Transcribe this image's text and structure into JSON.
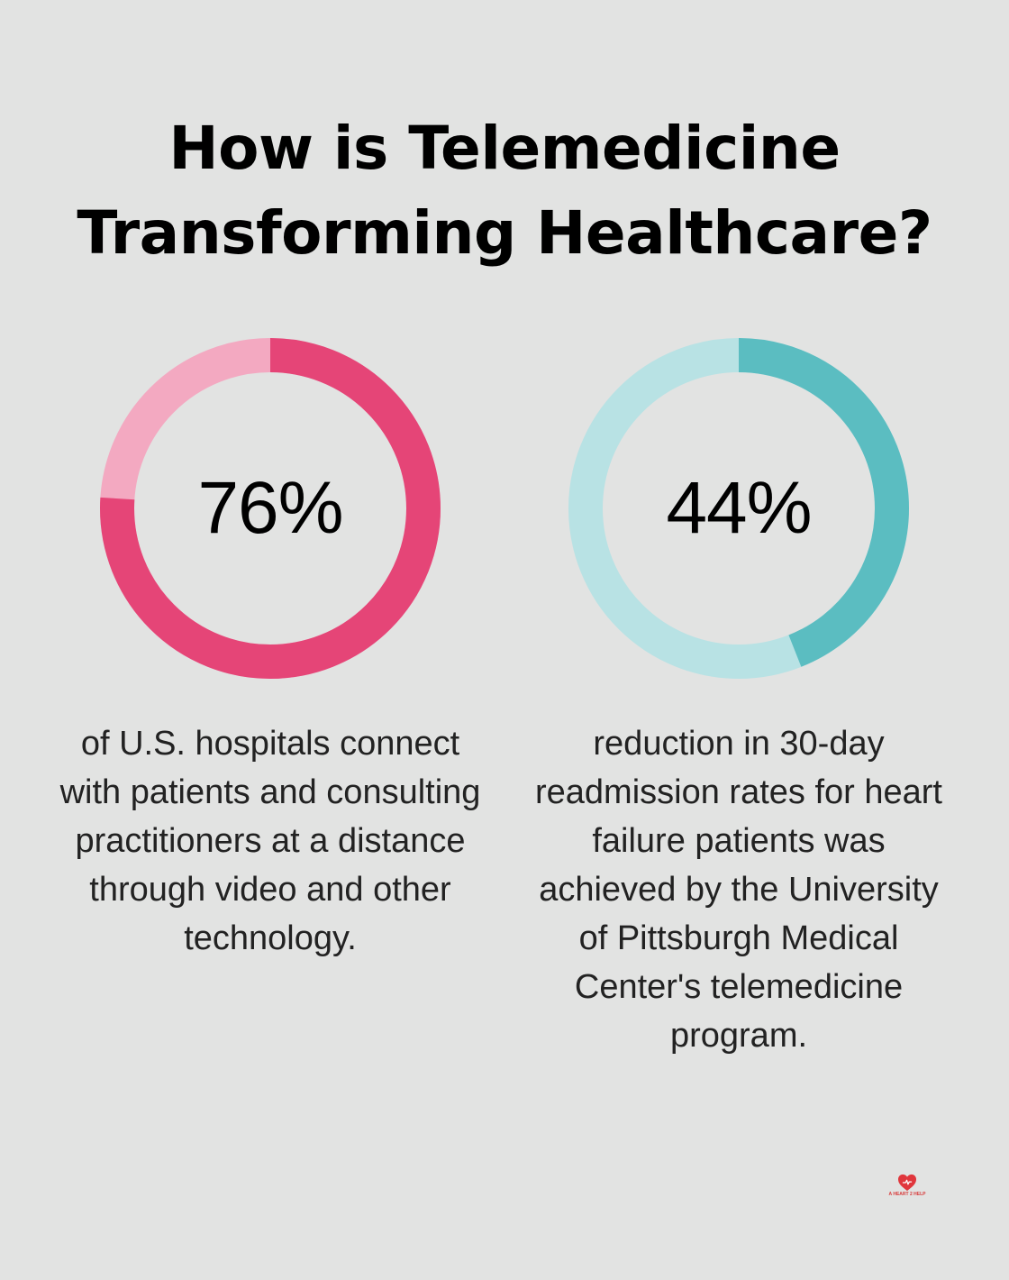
{
  "title": "How is Telemedicine Transforming Healthcare?",
  "chart_data": [
    {
      "type": "pie",
      "value": 76,
      "max": 100,
      "label": "76%",
      "description": "of U.S. hospitals connect with patients and consulting practitioners at a distance through video and other technology.",
      "colors": {
        "fill": "#e54577",
        "track": "#f3a9c1"
      }
    },
    {
      "type": "pie",
      "value": 44,
      "max": 100,
      "label": "44%",
      "description": "reduction in 30-day readmission rates for heart failure patients was achieved by the University of Pittsburgh Medical Center's telemedicine program.",
      "colors": {
        "fill": "#5bbdc1",
        "track": "#b8e2e4"
      }
    }
  ],
  "logo": {
    "icon": "heart-icon",
    "text": "A HEART 2 HELP",
    "color": "#e0363c"
  }
}
